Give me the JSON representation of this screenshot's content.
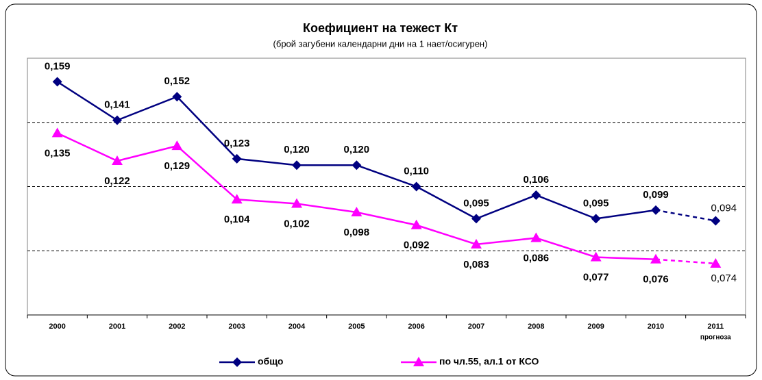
{
  "chart_data": {
    "type": "line",
    "title": "Коефициент на тежест Кт",
    "subtitle": "(брой загубени календарни дни на 1 нает/осигурен)",
    "categories": [
      "2000",
      "2001",
      "2002",
      "2003",
      "2004",
      "2005",
      "2006",
      "2007",
      "2008",
      "2009",
      "2010",
      "2011"
    ],
    "forecast_label": "прогноза",
    "forecast_segments": 1,
    "series": [
      {
        "name": "общо",
        "color": "#000080",
        "marker": "diamond",
        "values": [
          0.159,
          0.141,
          0.152,
          0.123,
          0.12,
          0.12,
          0.11,
          0.095,
          0.106,
          0.095,
          0.099,
          0.094
        ],
        "value_labels": [
          "0,159",
          "0,141",
          "0,152",
          "0,123",
          "0,120",
          "0,120",
          "0,110",
          "0,095",
          "0,106",
          "0,095",
          "0,099",
          "0,094"
        ]
      },
      {
        "name": "по чл.55, ал.1 от КСО",
        "color": "#ff00ff",
        "marker": "triangle",
        "values": [
          0.135,
          0.122,
          0.129,
          0.104,
          0.102,
          0.098,
          0.092,
          0.083,
          0.086,
          0.077,
          0.076,
          0.074
        ],
        "value_labels": [
          "0,135",
          "0,122",
          "0,129",
          "0,104",
          "0,102",
          "0,098",
          "0,092",
          "0,083",
          "0,086",
          "0,077",
          "0,076",
          "0,074"
        ]
      }
    ],
    "ylim": [
      0.05,
      0.17
    ],
    "yticks": [
      0.08,
      0.11,
      0.14
    ],
    "grid": true,
    "legend": "bottom"
  }
}
